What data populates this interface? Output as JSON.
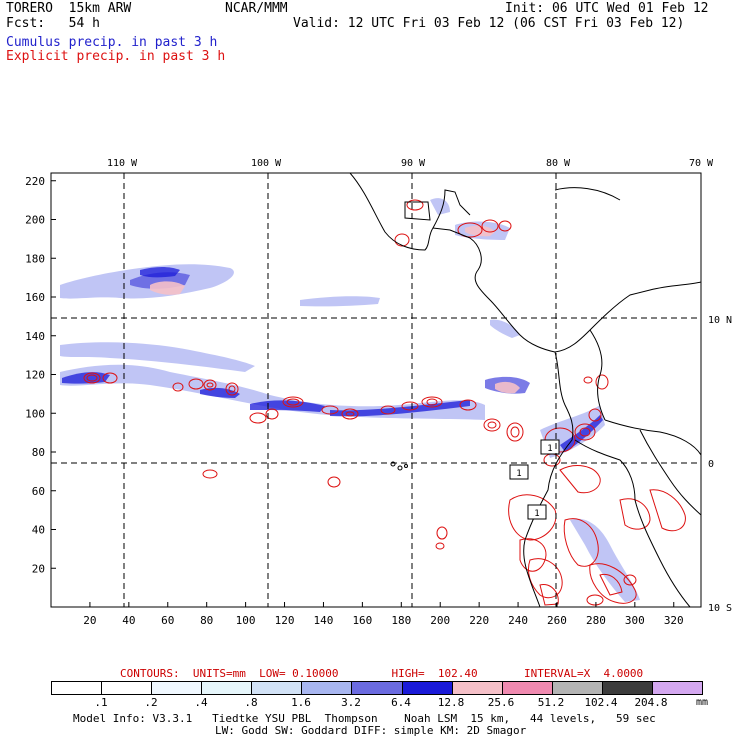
{
  "header": {
    "model": "TORERO  15km ARW",
    "center": "NCAR/MMM",
    "init": "Init: 06 UTC Wed 01 Feb 12",
    "fcst": "Fcst:   54 h",
    "valid": "Valid: 12 UTC Fri 03 Feb 12 (06 CST Fri 03 Feb 12)"
  },
  "legend": {
    "cumulus": "Cumulus precip. in past 3 h",
    "explicit": "Explicit precip. in past 3 h",
    "cumulus_color": "#2222cc",
    "explicit_color": "#dd1111"
  },
  "axes": {
    "lon_labels": [
      "110 W",
      "100 W",
      "90 W",
      "80 W",
      "70 W"
    ],
    "lat_labels": [
      "10 N",
      "0",
      "10 S"
    ],
    "x_ticks": [
      "20",
      "40",
      "60",
      "80",
      "100",
      "120",
      "140",
      "160",
      "180",
      "200",
      "220",
      "240",
      "260",
      "280",
      "300",
      "320"
    ],
    "y_ticks": [
      "220",
      "200",
      "180",
      "160",
      "140",
      "120",
      "100",
      "80",
      "60",
      "40",
      "20"
    ]
  },
  "contours": {
    "caption": "CONTOURS:  UNITS=mm  LOW= 0.10000        HIGH=  102.40       INTERVAL=X  4.0000"
  },
  "colorbar": {
    "labels": [
      ".1",
      ".2",
      ".4",
      ".8",
      "1.6",
      "3.2",
      "6.4",
      "12.8",
      "25.6",
      "51.2",
      "102.4",
      "204.8"
    ],
    "unit": "mm",
    "colors": [
      "#ffffff",
      "#ffffff",
      "#f0f8ff",
      "#e6f6fb",
      "#d2e2f6",
      "#a8b6f0",
      "#6b6be0",
      "#1a1ad8",
      "#f5c0c8",
      "#f08ab0",
      "#b4b4b4",
      "#3c3c3c",
      "#d4a8f0"
    ]
  },
  "footer": {
    "line1": "Model Info: V3.3.1   Tiedtke YSU PBL  Thompson    Noah LSM  15 km,   44 levels,   59 sec",
    "line2": "LW: Godd SW: Goddard DIFF: simple KM: 2D Smagor"
  },
  "colors": {
    "coast": "#000000",
    "cumulus_fill": "#3a3ae0",
    "explicit_contour": "#dd1111"
  }
}
